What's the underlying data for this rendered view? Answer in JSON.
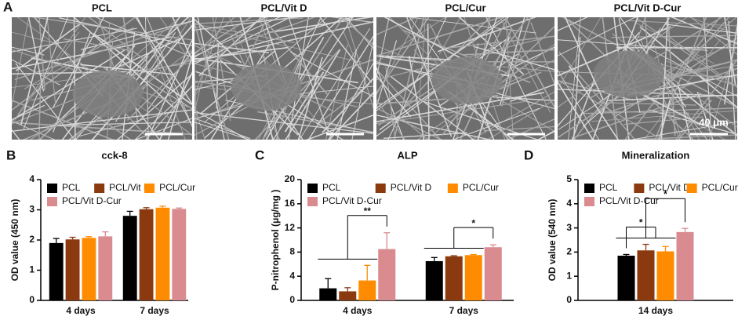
{
  "panel_a": {
    "label": "A",
    "titles": [
      "PCL",
      "PCL/Vit D",
      "PCL/Cur",
      "PCL/Vit D-Cur"
    ],
    "scale_label": "40 μm"
  },
  "chart_data": [
    {
      "type": "bar",
      "label": "B",
      "title": "cck-8",
      "ylabel": "OD value (450 nm)",
      "categories": [
        "4 days",
        "7 days"
      ],
      "series": [
        {
          "name": "PCL",
          "color": "#000000",
          "values": [
            1.9,
            2.8
          ],
          "errors": [
            0.15,
            0.15
          ]
        },
        {
          "name": "PCL/Vit D",
          "color": "#8b3a0f",
          "values": [
            2.02,
            3.02
          ],
          "errors": [
            0.07,
            0.05
          ]
        },
        {
          "name": "PCL/Cur",
          "color": "#ff8c00",
          "values": [
            2.07,
            3.07
          ],
          "errors": [
            0.04,
            0.05
          ]
        },
        {
          "name": "PCL/Vit D-Cur",
          "color": "#d98b8f",
          "values": [
            2.12,
            3.03
          ],
          "errors": [
            0.15,
            0.03
          ]
        }
      ],
      "ylim": [
        0,
        4
      ],
      "yticks": [
        0,
        1,
        2,
        3,
        4
      ]
    },
    {
      "type": "bar",
      "label": "C",
      "title": "ALP",
      "ylabel": "P-nitrophenol (μg/mg )",
      "categories": [
        "4 days",
        "7 days"
      ],
      "series": [
        {
          "name": "PCL",
          "color": "#000000",
          "values": [
            2.0,
            6.5
          ],
          "errors": [
            1.6,
            0.6
          ]
        },
        {
          "name": "PCL/Vit D",
          "color": "#8b3a0f",
          "values": [
            1.5,
            7.3
          ],
          "errors": [
            0.6,
            0.1
          ]
        },
        {
          "name": "PCL/Cur",
          "color": "#ff8c00",
          "values": [
            3.3,
            7.5
          ],
          "errors": [
            2.5,
            0.1
          ]
        },
        {
          "name": "PCL/Vit D-Cur",
          "color": "#d98b8f",
          "values": [
            8.5,
            8.8
          ],
          "errors": [
            2.7,
            0.4
          ]
        }
      ],
      "ylim": [
        0,
        20
      ],
      "yticks": [
        0,
        4,
        8,
        12,
        16,
        20
      ],
      "annotations": [
        "**",
        "*"
      ]
    },
    {
      "type": "bar",
      "label": "D",
      "title": "Mineralization",
      "ylabel": "OD value (540 nm)",
      "categories": [
        "14 days"
      ],
      "series": [
        {
          "name": "PCL",
          "color": "#000000",
          "values": [
            1.85
          ],
          "errors": [
            0.05
          ]
        },
        {
          "name": "PCL/Vit D",
          "color": "#8b3a0f",
          "values": [
            2.07
          ],
          "errors": [
            0.25
          ]
        },
        {
          "name": "PCL/Cur",
          "color": "#ff8c00",
          "values": [
            2.03
          ],
          "errors": [
            0.2
          ]
        },
        {
          "name": "PCL/Vit D-Cur",
          "color": "#d98b8f",
          "values": [
            2.83
          ],
          "errors": [
            0.15
          ]
        }
      ],
      "ylim": [
        0,
        5
      ],
      "yticks": [
        0,
        1,
        2,
        3,
        4,
        5
      ],
      "annotations": [
        "*",
        "*"
      ]
    }
  ]
}
